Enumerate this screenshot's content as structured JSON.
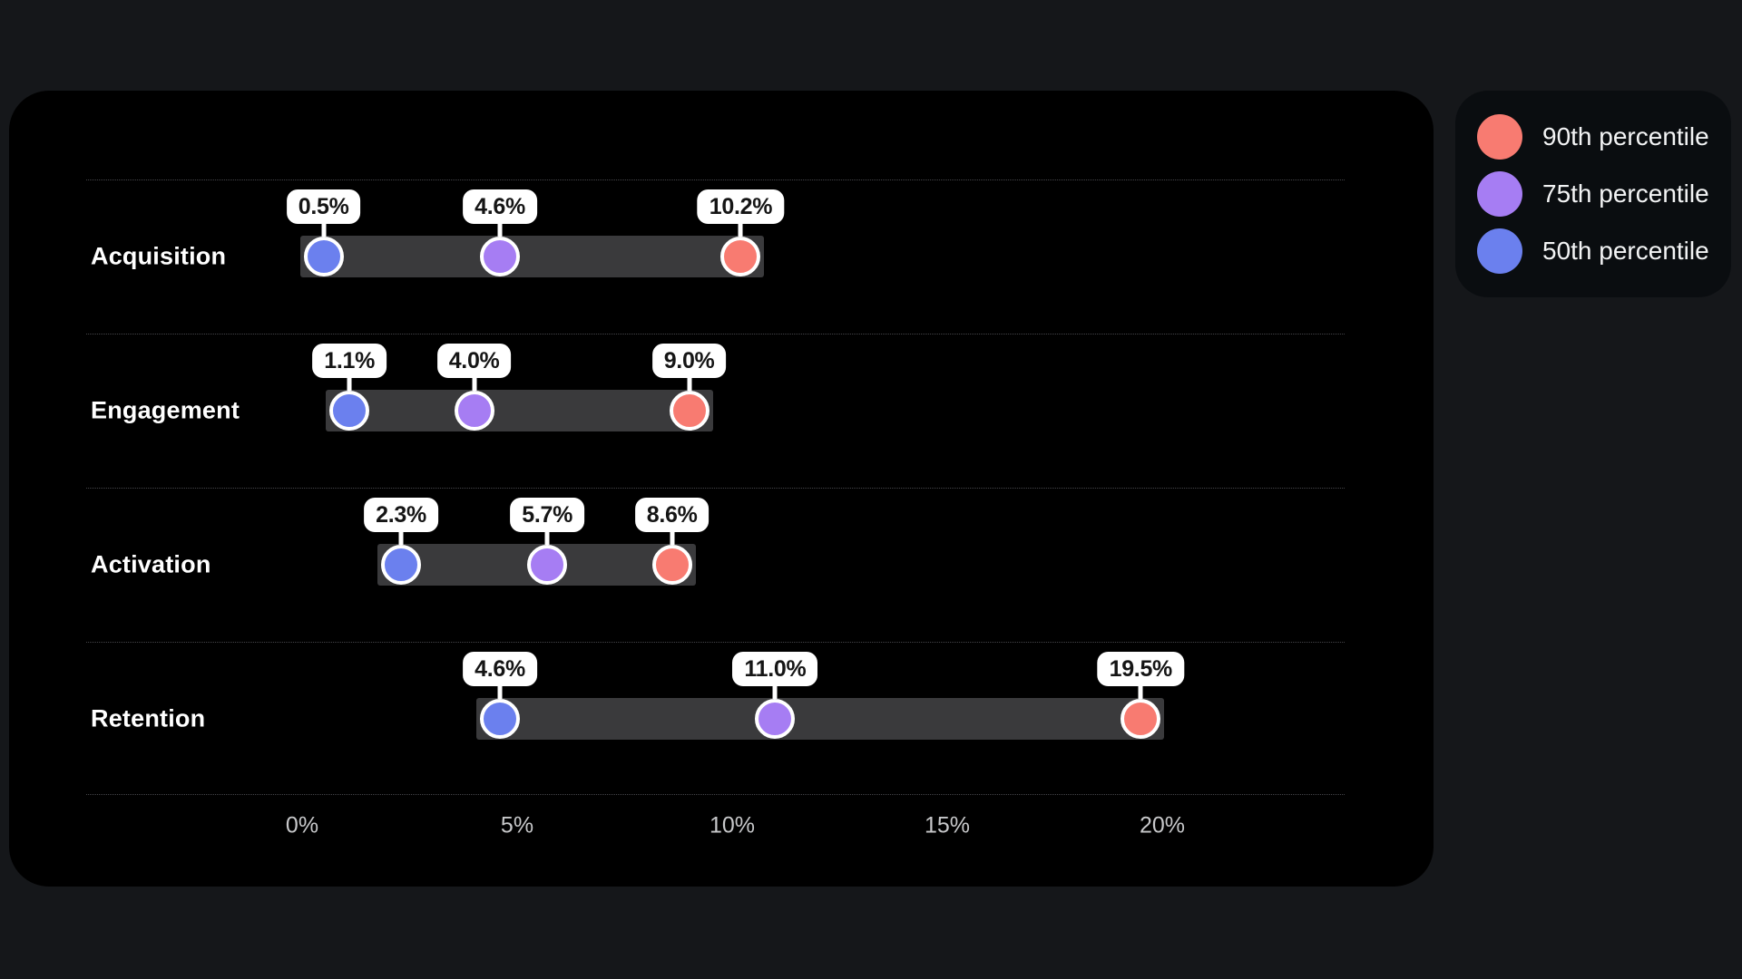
{
  "chart_data": {
    "type": "scatter",
    "subtype": "dumbbell-dot-plot",
    "title": "",
    "xlabel": "",
    "ylabel": "",
    "categories": [
      "Acquisition",
      "Engagement",
      "Activation",
      "Retention"
    ],
    "series": [
      {
        "name": "50th percentile",
        "color": "#6b80ee",
        "values": [
          0.5,
          1.1,
          2.3,
          4.6
        ]
      },
      {
        "name": "75th percentile",
        "color": "#a67df3",
        "values": [
          4.6,
          4.0,
          5.7,
          11.0
        ]
      },
      {
        "name": "90th percentile",
        "color": "#f87b71",
        "values": [
          10.2,
          9.0,
          8.6,
          19.5
        ]
      }
    ],
    "point_labels": [
      [
        "0.5%",
        "4.6%",
        "10.2%"
      ],
      [
        "1.1%",
        "4.0%",
        "9.0%"
      ],
      [
        "2.3%",
        "5.7%",
        "8.6%"
      ],
      [
        "4.6%",
        "11.0%",
        "19.5%"
      ]
    ],
    "x_ticks": [
      {
        "value": 0,
        "label": "0%"
      },
      {
        "value": 5,
        "label": "5%"
      },
      {
        "value": 10,
        "label": "10%"
      },
      {
        "value": 15,
        "label": "15%"
      },
      {
        "value": 20,
        "label": "20%"
      }
    ],
    "xlim": [
      0,
      24.2
    ],
    "grid": "horizontal-dotted-row-separators",
    "legend_position": "top-right-outside",
    "range_bar_color": "#3a3a3c"
  },
  "legend": {
    "items": [
      {
        "label": "90th percentile",
        "color": "#f87b71"
      },
      {
        "label": "75th percentile",
        "color": "#a67df3"
      },
      {
        "label": "50th percentile",
        "color": "#6b80ee"
      }
    ]
  },
  "colors": {
    "page_background": "#15171a",
    "card_background": "#000000",
    "legend_background": "#0a0d10",
    "row_label_text": "#ffffff",
    "axis_tick_text": "#c7c8ca",
    "value_pill_background": "#ffffff",
    "value_pill_text": "#151515"
  }
}
